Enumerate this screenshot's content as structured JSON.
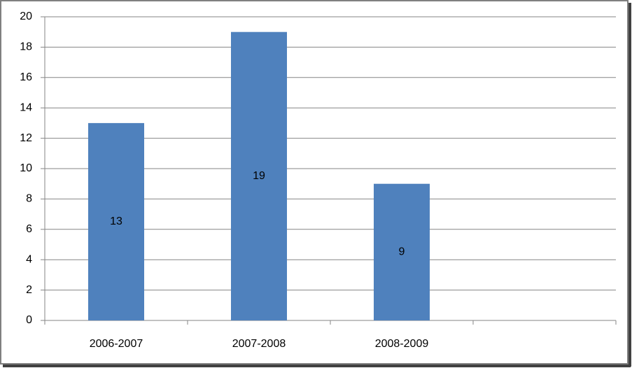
{
  "chart_data": {
    "type": "bar",
    "categories": [
      "2006-2007",
      "2007-2008",
      "2008-2009",
      null
    ],
    "values": [
      13,
      19,
      9,
      null
    ],
    "color": "#4f81bd",
    "ylim": [
      0,
      20
    ],
    "yticks": [
      0,
      2,
      4,
      6,
      8,
      10,
      12,
      14,
      16,
      18,
      20
    ],
    "grid": true
  }
}
